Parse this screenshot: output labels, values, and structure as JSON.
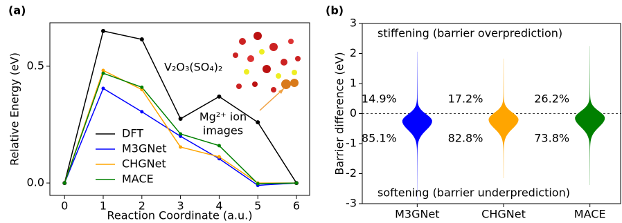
{
  "chart_data": [
    {
      "type": "line",
      "panel_label": "(a)",
      "x_label": "Reaction Coordinate (a.u.)",
      "y_label": "Relative Energy (eV)",
      "x": [
        0,
        1,
        2,
        3,
        4,
        5,
        6
      ],
      "series": [
        {
          "name": "DFT",
          "color": "#000000",
          "values": [
            0,
            0.651,
            0.615,
            0.275,
            0.37,
            0.26,
            0
          ]
        },
        {
          "name": "M3GNet",
          "color": "#0000ff",
          "values": [
            0,
            0.405,
            0.305,
            0.2,
            0.104,
            -0.01,
            0
          ]
        },
        {
          "name": "CHGNet",
          "color": "#ffa500",
          "values": [
            0,
            0.482,
            0.4,
            0.154,
            0.112,
            0,
            0
          ]
        },
        {
          "name": "MACE",
          "color": "#008000",
          "values": [
            0,
            0.47,
            0.41,
            0.21,
            0.16,
            -0.003,
            0
          ]
        }
      ],
      "xlim": [
        -0.38,
        6.34
      ],
      "xticks": [
        0,
        1,
        2,
        3,
        4,
        5,
        6
      ],
      "ylim": [
        -0.053,
        0.686
      ],
      "yticks": [
        {
          "value": 0,
          "label": "0.0"
        },
        0.5
      ],
      "legend": "lower-left",
      "annotations": [
        "V₂O₃(SO₄)₂",
        "Mg²⁺ ion",
        "images"
      ]
    },
    {
      "type": "violin",
      "panel_label": "(b)",
      "y_label": "Barrier difference (eV)",
      "categories": [
        "M3GNet",
        "CHGNet",
        "MACE"
      ],
      "violins": [
        {
          "color": "#0000ff",
          "min": -2.9,
          "max": 2.06,
          "mode": -0.25,
          "above": 14.9,
          "above_label": "14.9%",
          "below": 85.1,
          "below_label": "85.1%"
        },
        {
          "color": "#ffa500",
          "min": -2.15,
          "max": 1.83,
          "mode": -0.2,
          "above": 17.2,
          "above_label": "17.2%",
          "below": 82.8,
          "below_label": "82.8%"
        },
        {
          "color": "#008000",
          "min": -2.38,
          "max": 2.24,
          "mode": -0.15,
          "above": 26.2,
          "above_label": "26.2%",
          "below": 73.8,
          "below_label": "73.8%"
        }
      ],
      "ylim": [
        -3,
        3
      ],
      "yticks": [
        -3,
        -2,
        -1,
        0,
        1,
        2,
        3
      ],
      "hline": 0,
      "annotations": [
        "stiffening (barrier overprediction)",
        "softening (barrier underprediction)"
      ]
    }
  ]
}
